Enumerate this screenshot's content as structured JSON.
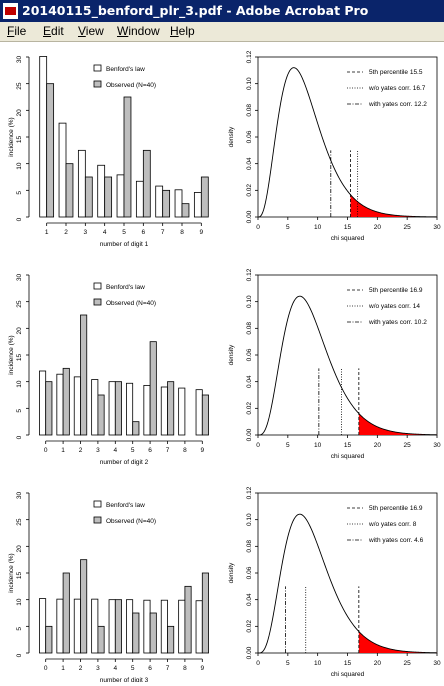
{
  "window": {
    "title": "20140115_benford_plr_3.pdf - Adobe Acrobat Pro"
  },
  "menu": [
    "File",
    "Edit",
    "View",
    "Window",
    "Help"
  ],
  "colors": {
    "titlebar": "#0a246a",
    "menubar": "#ece9d8",
    "observed_bar": "#bebebe",
    "tail_fill": "#ff0000"
  },
  "chart_data": [
    {
      "type": "bar",
      "xlabel": "number of digit 1",
      "ylabel": "incidence (%)",
      "ylim": [
        0,
        30
      ],
      "yticks": [
        0,
        5,
        10,
        15,
        20,
        25,
        30
      ],
      "categories": [
        "1",
        "2",
        "3",
        "4",
        "5",
        "6",
        "7",
        "8",
        "9"
      ],
      "series": [
        {
          "name": "Benford's law",
          "values": [
            30.1,
            17.6,
            12.5,
            9.7,
            7.9,
            6.7,
            5.8,
            5.1,
            4.6
          ]
        },
        {
          "name": "Observed (N=40)",
          "values": [
            25,
            10,
            7.5,
            7.5,
            22.5,
            12.5,
            5,
            2.5,
            7.5
          ]
        }
      ]
    },
    {
      "type": "line",
      "xlabel": "chi squared",
      "ylabel": "density",
      "xlim": [
        0,
        30
      ],
      "ylim": [
        0,
        0.12
      ],
      "xticks": [
        0,
        5,
        10,
        15,
        20,
        25,
        30
      ],
      "yticks": [
        "0.00",
        "0.02",
        "0.04",
        "0.06",
        "0.08",
        "0.10",
        "0.12"
      ],
      "df": 8,
      "tail_from": 15.5,
      "lines": [
        {
          "name": "5th percentile 15.5",
          "x": 15.5,
          "style": "dashed"
        },
        {
          "name": "w/o yates corr. 16.7",
          "x": 16.7,
          "style": "dotted"
        },
        {
          "name": "with yates corr. 12.2",
          "x": 12.2,
          "style": "dashdot"
        }
      ]
    },
    {
      "type": "bar",
      "xlabel": "number of digit 2",
      "ylabel": "incidence (%)",
      "ylim": [
        0,
        30
      ],
      "yticks": [
        0,
        5,
        10,
        15,
        20,
        25,
        30
      ],
      "categories": [
        "0",
        "1",
        "2",
        "3",
        "4",
        "5",
        "6",
        "7",
        "8",
        "9"
      ],
      "series": [
        {
          "name": "Benford's law",
          "values": [
            12.0,
            11.4,
            10.9,
            10.4,
            10.0,
            9.7,
            9.3,
            9.0,
            8.8,
            8.5
          ]
        },
        {
          "name": "Observed (N=40)",
          "values": [
            10,
            12.5,
            22.5,
            7.5,
            10,
            2.5,
            17.5,
            10,
            0,
            7.5
          ]
        }
      ]
    },
    {
      "type": "line",
      "xlabel": "chi squared",
      "ylabel": "density",
      "xlim": [
        0,
        30
      ],
      "ylim": [
        0,
        0.12
      ],
      "xticks": [
        0,
        5,
        10,
        15,
        20,
        25,
        30
      ],
      "yticks": [
        "0.00",
        "0.02",
        "0.04",
        "0.06",
        "0.08",
        "0.10",
        "0.12"
      ],
      "df": 9,
      "tail_from": 16.9,
      "lines": [
        {
          "name": "5th percentile 16.9",
          "x": 16.9,
          "style": "dashed"
        },
        {
          "name": "w/o yates corr. 14",
          "x": 14.0,
          "style": "dotted"
        },
        {
          "name": "with yates corr. 10.2",
          "x": 10.2,
          "style": "dashdot"
        }
      ]
    },
    {
      "type": "bar",
      "xlabel": "number of digit 3",
      "ylabel": "incidence (%)",
      "ylim": [
        0,
        30
      ],
      "yticks": [
        0,
        5,
        10,
        15,
        20,
        25,
        30
      ],
      "categories": [
        "0",
        "1",
        "2",
        "3",
        "4",
        "5",
        "6",
        "7",
        "8",
        "9"
      ],
      "series": [
        {
          "name": "Benford's law",
          "values": [
            10.2,
            10.1,
            10.1,
            10.1,
            10.0,
            10.0,
            9.9,
            9.9,
            9.9,
            9.8
          ]
        },
        {
          "name": "Observed (N=40)",
          "values": [
            5,
            15,
            17.5,
            5,
            10,
            7.5,
            7.5,
            5,
            12.5,
            15
          ]
        }
      ]
    },
    {
      "type": "line",
      "xlabel": "chi squared",
      "ylabel": "density",
      "xlim": [
        0,
        30
      ],
      "ylim": [
        0,
        0.12
      ],
      "xticks": [
        0,
        5,
        10,
        15,
        20,
        25,
        30
      ],
      "yticks": [
        "0.00",
        "0.02",
        "0.04",
        "0.06",
        "0.08",
        "0.10",
        "0.12"
      ],
      "df": 9,
      "tail_from": 16.9,
      "lines": [
        {
          "name": "5th percentile 16.9",
          "x": 16.9,
          "style": "dashed"
        },
        {
          "name": "w/o yates corr. 8",
          "x": 8.0,
          "style": "dotted"
        },
        {
          "name": "with yates corr. 4.6",
          "x": 4.6,
          "style": "dashdot"
        }
      ]
    }
  ]
}
